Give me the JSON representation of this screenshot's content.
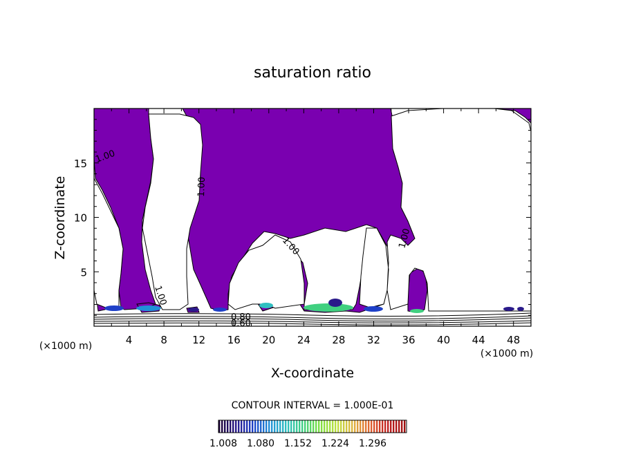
{
  "chart_data": {
    "type": "heatmap",
    "title": "saturation ratio",
    "xlabel": "X-coordinate",
    "ylabel": "Z-coordinate",
    "x_unit": "(×1000 m)",
    "z_unit": "(×1000 m)",
    "xlim": [
      0,
      50
    ],
    "ylim": [
      0,
      20
    ],
    "x_ticks": [
      "4",
      "8",
      "12",
      "16",
      "20",
      "24",
      "28",
      "32",
      "36",
      "40",
      "44",
      "48"
    ],
    "y_ticks": [
      "5",
      "10",
      "15"
    ],
    "fill_color": "#7a00b0",
    "contour_labels": [
      "1.00",
      "1.00",
      "1.00",
      "1.00",
      "1.00",
      "0.80",
      "0.60"
    ],
    "contour_interval": "CONTOUR INTERVAL = 1.000E-01",
    "colorbar": {
      "ticks": [
        "1.008",
        "1.080",
        "1.152",
        "1.224",
        "1.296"
      ],
      "colors": [
        "#1a0033",
        "#2a1a8a",
        "#1e40c8",
        "#2090d8",
        "#30c0c0",
        "#40d080",
        "#80e040",
        "#c0e040",
        "#e0b040",
        "#e06030",
        "#c02020",
        "#a01010"
      ]
    }
  }
}
